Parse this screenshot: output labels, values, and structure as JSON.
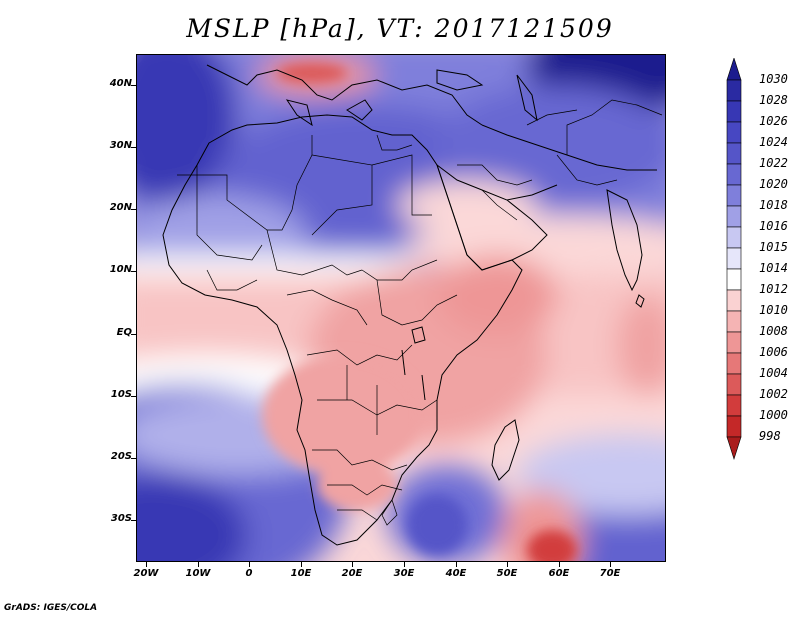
{
  "title": "MSLP [hPa], VT: 2017121509",
  "footer": "GrADS: IGES/COLA",
  "map": {
    "region": "Africa",
    "lon_range": [
      -23,
      80
    ],
    "lat_range": [
      -37,
      45
    ]
  },
  "axes": {
    "y_labels": [
      "40N",
      "30N",
      "20N",
      "10N",
      "EQ",
      "10S",
      "20S",
      "30S"
    ],
    "x_labels": [
      "20W",
      "10W",
      "0",
      "10E",
      "20E",
      "30E",
      "40E",
      "50E",
      "60E",
      "70E"
    ]
  },
  "colorbar": {
    "labels": [
      "1030",
      "1028",
      "1026",
      "1024",
      "1022",
      "1020",
      "1018",
      "1016",
      "1015",
      "1014",
      "1012",
      "1010",
      "1008",
      "1006",
      "1004",
      "1002",
      "1000",
      "998"
    ],
    "colors": [
      "#1c1c8e",
      "#2a2aa2",
      "#3737b4",
      "#4747c2",
      "#5555c8",
      "#6868d2",
      "#7f7fdb",
      "#a0a0e6",
      "#c8c8f2",
      "#e6e6fa",
      "#ffffff",
      "#fad2d2",
      "#f5b4b4",
      "#ee9696",
      "#e67878",
      "#dc5a5a",
      "#d23c3c",
      "#c42828",
      "#aa1c1c"
    ],
    "unit": "hPa"
  }
}
